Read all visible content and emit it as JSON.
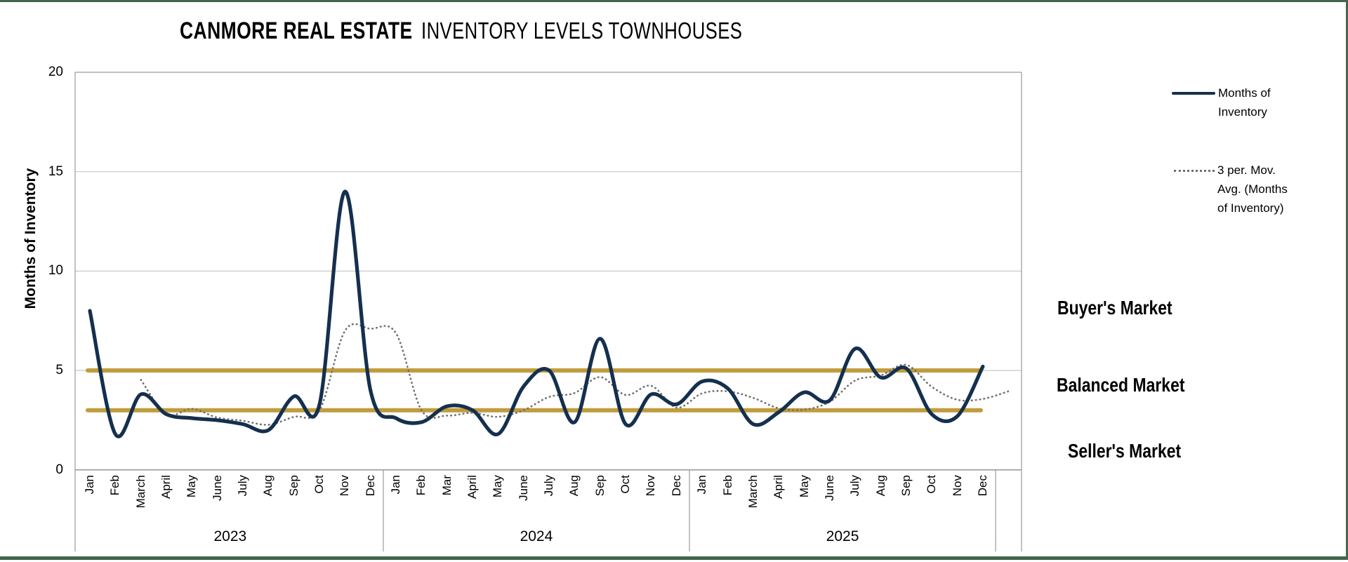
{
  "header": {
    "title_brand": "CANMORE REAL ESTATE",
    "title_rest": "INVENTORY LEVELS TOWNHOUSES"
  },
  "legend": {
    "items": [
      {
        "label": "Months of Inventory",
        "style": "solid"
      },
      {
        "label": "3 per. Mov. Avg. (Months of Inventory)",
        "style": "dotted"
      }
    ]
  },
  "market_zones": [
    {
      "label": "Buyer's Market"
    },
    {
      "label": "Balanced Market"
    },
    {
      "label": "Seller's Market"
    }
  ],
  "colors": {
    "inventory_line": "#15304e",
    "moving_avg_line": "#6e6e6e",
    "reference_line": "#c09c3d",
    "gridline": "#c8c8c8",
    "axis_line": "#9a9a9a",
    "zero_axis_line": "#8c8c8c",
    "frame_border": "#42664a",
    "text": "#000000"
  },
  "chart_data": {
    "type": "line",
    "title": "CANMORE REAL ESTATE INVENTORY LEVELS TOWNHOUSES",
    "xlabel": "",
    "ylabel": "Months of Inventory",
    "ylim": [
      0,
      20
    ],
    "yticks": [
      0,
      5,
      10,
      15,
      20
    ],
    "grid": true,
    "legend_position": "right",
    "years": [
      {
        "label": "2023",
        "months": [
          "Jan",
          "Feb",
          "March",
          "April",
          "May",
          "June",
          "July",
          "Aug",
          "Sep",
          "Oct",
          "Nov",
          "Dec"
        ]
      },
      {
        "label": "2024",
        "months": [
          "Jan",
          "Feb",
          "Mar",
          "April",
          "May",
          "June",
          "July",
          "Aug",
          "Sep",
          "Oct",
          "Nov",
          "Dec"
        ]
      },
      {
        "label": "2025",
        "months": [
          "Jan",
          "Feb",
          "March",
          "April",
          "May",
          "June",
          "July",
          "Aug",
          "Sep",
          "Oct",
          "Nov",
          "Dec"
        ]
      }
    ],
    "series": [
      {
        "name": "Months of Inventory",
        "values": [
          8.0,
          1.8,
          3.8,
          2.8,
          2.6,
          2.5,
          2.3,
          2.0,
          3.7,
          3.3,
          14.0,
          4.0,
          2.6,
          2.4,
          3.2,
          3.0,
          1.8,
          4.2,
          5.0,
          2.4,
          6.6,
          2.3,
          3.8,
          3.3,
          4.45,
          4.1,
          2.3,
          2.9,
          3.9,
          3.5,
          6.1,
          4.65,
          5.1,
          2.8,
          2.7,
          5.2
        ]
      },
      {
        "name": "3 per. Mov. Avg. (Months of Inventory)",
        "values": [
          null,
          null,
          4.53,
          2.8,
          3.07,
          2.63,
          2.47,
          2.27,
          2.67,
          3.0,
          7.0,
          7.1,
          6.87,
          3.0,
          2.73,
          2.87,
          2.67,
          3.0,
          3.67,
          3.87,
          4.67,
          3.77,
          4.23,
          3.13,
          3.85,
          3.95,
          3.62,
          3.1,
          3.03,
          3.43,
          4.5,
          4.75,
          5.28,
          4.18,
          3.53,
          3.57
        ],
        "tail_value": 3.95
      }
    ],
    "reference_lines": [
      {
        "value": 5
      },
      {
        "value": 3
      }
    ]
  }
}
